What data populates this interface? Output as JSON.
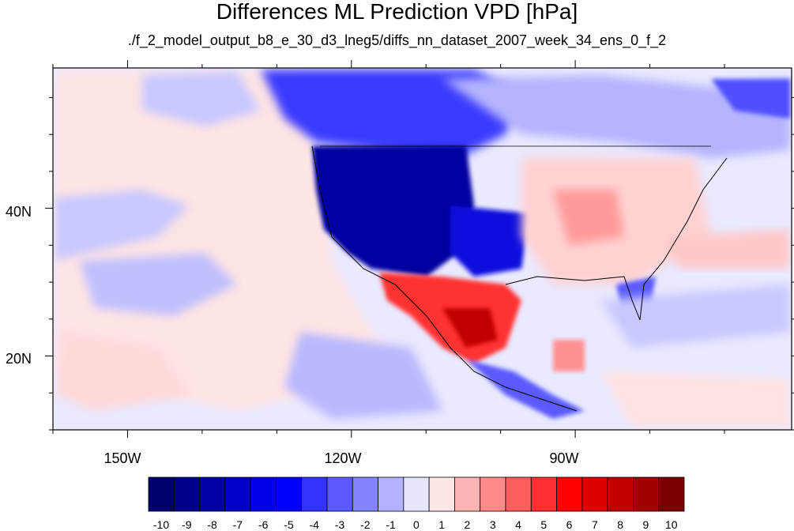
{
  "title": "Differences ML Prediction VPD [hPa]",
  "subtitle": "./f_2_model_output_b8_e_30_d3_lneg5/diffs_nn_dataset_2007_week_34_ens_0_f_2",
  "map": {
    "lat_ticks": [
      "40N",
      "20N"
    ],
    "lon_ticks": [
      "150W",
      "120W",
      "90W"
    ],
    "lon_range": [
      -160,
      -61
    ],
    "lat_range": [
      10,
      59
    ]
  },
  "colorbar": {
    "labels": [
      "-10",
      "-9",
      "-8",
      "-7",
      "-6",
      "-5",
      "-4",
      "-3",
      "-2",
      "-1",
      "0",
      "1",
      "2",
      "3",
      "4",
      "5",
      "6",
      "7",
      "8",
      "9",
      "10"
    ],
    "colors": [
      "#00006e",
      "#00008c",
      "#0000a8",
      "#0000c8",
      "#0000e6",
      "#0000ff",
      "#3333ff",
      "#5a5aff",
      "#8484ff",
      "#b2b2ff",
      "#e6e6ff",
      "#ffe6e6",
      "#ffb4b4",
      "#ff8a8a",
      "#ff5e5e",
      "#ff3030",
      "#ff0000",
      "#e00000",
      "#c20000",
      "#a00000",
      "#7a0000"
    ]
  }
}
